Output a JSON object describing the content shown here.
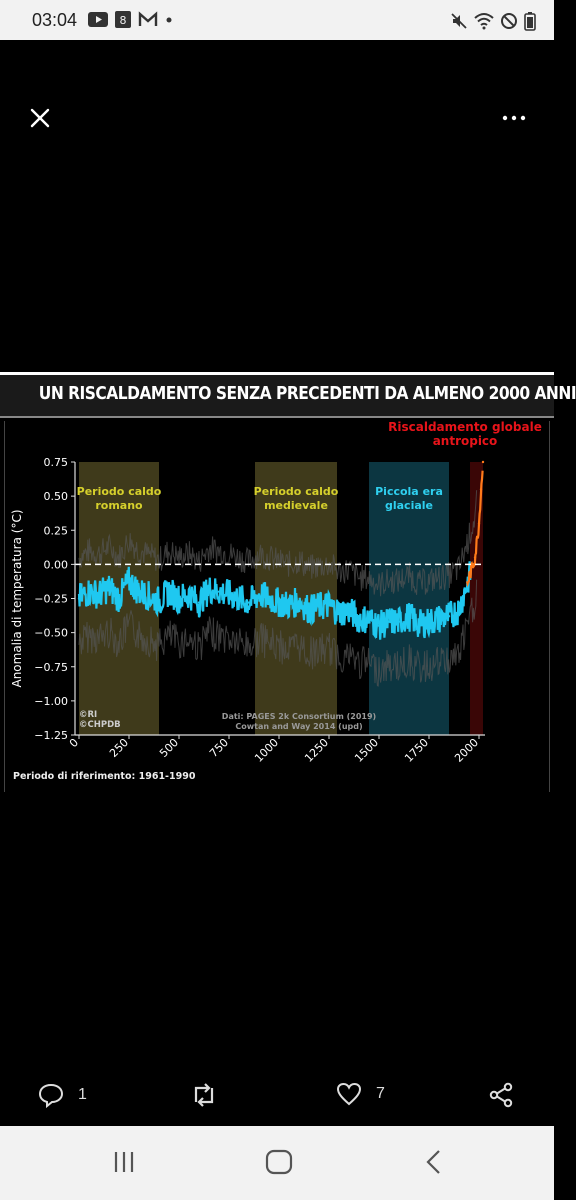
{
  "status_bar": {
    "time": "03:04",
    "notification_badge": "8"
  },
  "post": {
    "actions": {
      "reply_count": "1",
      "like_count": "7"
    }
  },
  "figure": {
    "title": "UN RISCALDAMENTO SENZA PRECEDENTI DA ALMENO 2000 ANNI",
    "colors": {
      "series": "#1fc8f0",
      "recent": "#ff7a1a",
      "anthropic_label": "#e8141a",
      "period_warm": "#4a4420",
      "period_cold": "#0e3f4c",
      "warm_label": "#d6d02c",
      "cold_label": "#2fd0f0"
    }
  },
  "chart_data": {
    "type": "line",
    "ylabel": "Anomalia di temperatura (°C)",
    "xlim": [
      -20,
      2030
    ],
    "ylim": [
      -1.25,
      0.75
    ],
    "x_ticks": [
      "0",
      "250",
      "500",
      "750",
      "1000",
      "1250",
      "1500",
      "1750",
      "2000"
    ],
    "y_ticks": [
      "0.75",
      "0.50",
      "0.25",
      "0.00",
      "−0.25",
      "−0.50",
      "−0.75",
      "−1.00",
      "−1.25"
    ],
    "periods": [
      {
        "label_line1": "Periodo caldo",
        "label_line2": "romano",
        "start": 0,
        "end": 400,
        "kind": "warm"
      },
      {
        "label_line1": "Periodo caldo",
        "label_line2": "medievale",
        "start": 880,
        "end": 1290,
        "kind": "warm"
      },
      {
        "label_line1": "Piccola era",
        "label_line2": "glaciale",
        "start": 1450,
        "end": 1850,
        "kind": "cold"
      }
    ],
    "anthropic": {
      "label_line1": "Riscaldamento globale",
      "label_line2": "antropico",
      "start": 1955,
      "end": 2020
    },
    "annotations": {
      "data_source_line1": "Dati: PAGES 2k Consortium (2019)",
      "data_source_line2": "Cowtan and Way 2014 (upd)",
      "credit_line1": "©RI",
      "credit_line2": "©CHPDB",
      "reference": "Periodo di riferimento: 1961-1990"
    },
    "series": [
      {
        "x": [
          0,
          50,
          100,
          150,
          200,
          250,
          300,
          350,
          400,
          450,
          500,
          550,
          600,
          650,
          700,
          750,
          800,
          850,
          900,
          950,
          1000,
          1050,
          1100,
          1150,
          1200,
          1250,
          1300,
          1350,
          1400,
          1450,
          1500,
          1550,
          1600,
          1650,
          1700,
          1750,
          1800,
          1850,
          1900,
          1950,
          1980,
          2000,
          2010,
          2020
        ],
        "y": [
          -0.25,
          -0.2,
          -0.22,
          -0.17,
          -0.25,
          -0.12,
          -0.2,
          -0.23,
          -0.27,
          -0.2,
          -0.25,
          -0.22,
          -0.28,
          -0.18,
          -0.2,
          -0.22,
          -0.25,
          -0.28,
          -0.22,
          -0.25,
          -0.28,
          -0.3,
          -0.27,
          -0.33,
          -0.31,
          -0.3,
          -0.35,
          -0.34,
          -0.4,
          -0.4,
          -0.45,
          -0.42,
          -0.42,
          -0.38,
          -0.44,
          -0.42,
          -0.4,
          -0.38,
          -0.33,
          -0.1,
          0.05,
          0.3,
          0.55,
          0.75
        ]
      }
    ]
  }
}
